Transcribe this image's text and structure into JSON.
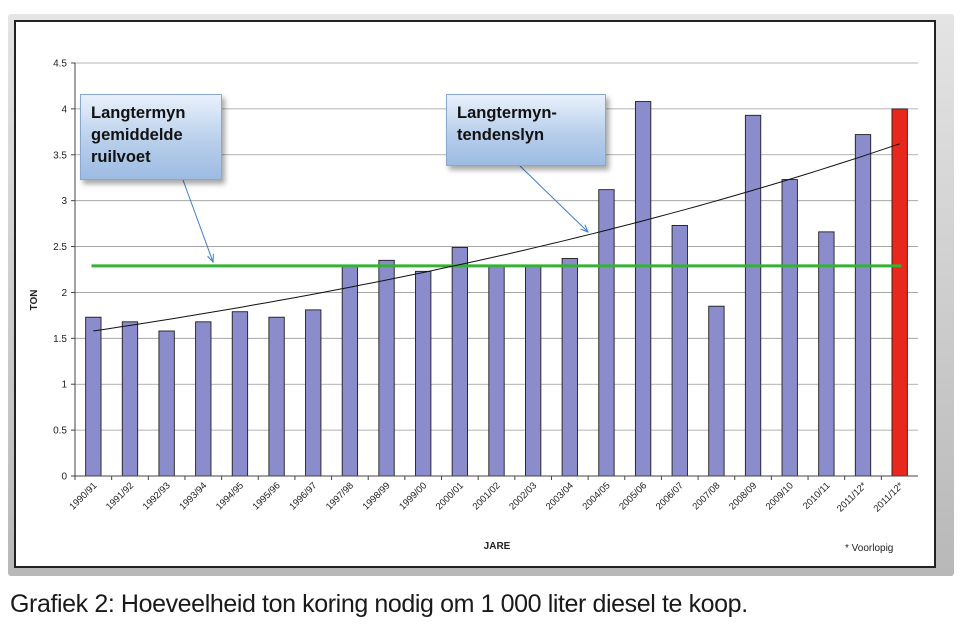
{
  "chart_data": {
    "type": "bar",
    "categories": [
      "1990/91",
      "1991/92",
      "1992/93",
      "1993/94",
      "1994/95",
      "1995/96",
      "1996/97",
      "1997/98",
      "1998/99",
      "1999/00",
      "2000/01",
      "2001/02",
      "2002/03",
      "2003/04",
      "2004/05",
      "2005/06",
      "2006/07",
      "2007/08",
      "2008/09",
      "2009/10",
      "2010/11",
      "2011/12*",
      "2011/12*"
    ],
    "values": [
      1.73,
      1.68,
      1.58,
      1.68,
      1.79,
      1.73,
      1.81,
      2.29,
      2.35,
      2.23,
      2.49,
      2.29,
      2.29,
      2.37,
      3.12,
      4.08,
      2.73,
      1.85,
      3.93,
      3.23,
      2.66,
      3.72,
      4.0
    ],
    "bar_colors": [
      "#8b8ccc",
      "#8b8ccc",
      "#8b8ccc",
      "#8b8ccc",
      "#8b8ccc",
      "#8b8ccc",
      "#8b8ccc",
      "#8b8ccc",
      "#8b8ccc",
      "#8b8ccc",
      "#8b8ccc",
      "#8b8ccc",
      "#8b8ccc",
      "#8b8ccc",
      "#8b8ccc",
      "#8b8ccc",
      "#8b8ccc",
      "#8b8ccc",
      "#8b8ccc",
      "#8b8ccc",
      "#8b8ccc",
      "#8b8ccc",
      "#e8281c"
    ],
    "ylim": [
      0,
      4.5
    ],
    "yticks": [
      "0",
      "0.5",
      "1",
      "1.5",
      "2",
      "2.5",
      "3",
      "3.5",
      "4",
      "4.5"
    ],
    "xlabel": "JARE",
    "ylabel": "TON",
    "grid": true,
    "average_line": {
      "value": 2.29,
      "color": "#33b233"
    },
    "trend_line": {
      "start": 1.58,
      "end": 3.62,
      "color": "#111111"
    },
    "note": "* Voorlopig"
  },
  "callouts": {
    "left": [
      "Langtermyn",
      "gemiddelde",
      "ruilvoet"
    ],
    "right": [
      "Langtermyn-",
      "tendenslyn"
    ]
  },
  "caption": "Grafiek 2: Hoeveelheid ton koring nodig om 1 000 liter diesel te koop."
}
